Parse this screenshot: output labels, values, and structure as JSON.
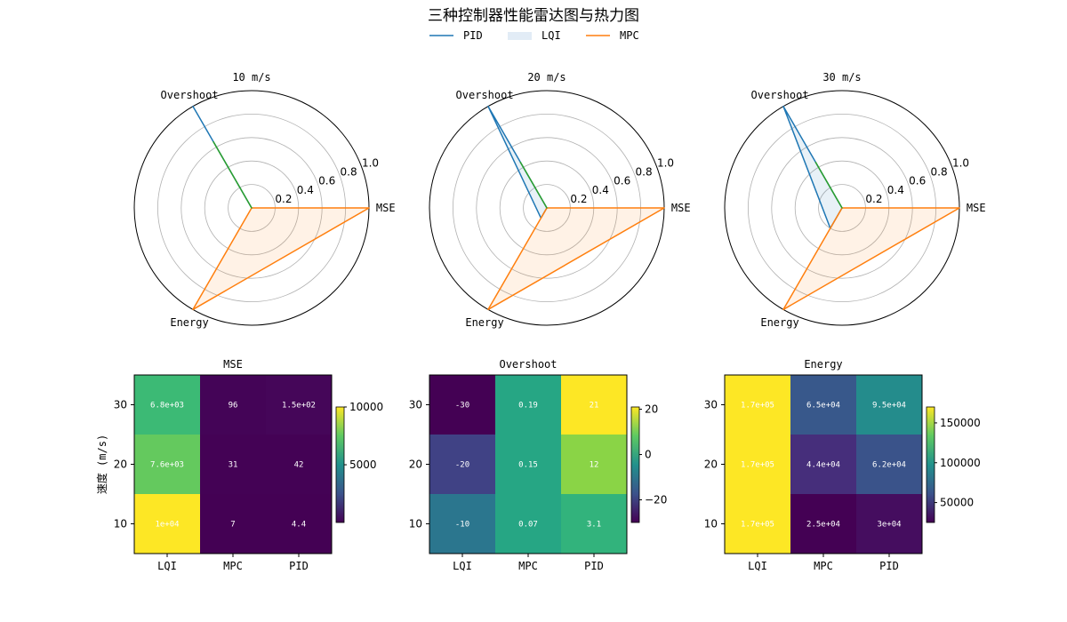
{
  "figure_title": "三种控制器性能雷达图与热力图",
  "legend": [
    {
      "name": "PID",
      "color": "#1f77b4",
      "style": "line"
    },
    {
      "name": "LQI",
      "color": "#cfe0f0",
      "style": "patch"
    },
    {
      "name": "MPC",
      "color": "#ff7f0e",
      "style": "line"
    }
  ],
  "colors": {
    "PID": "#1f77b4",
    "LQI": "#2ca02c",
    "MPC": "#ff7f0e",
    "PID_fill": "#1f77b4",
    "MPC_fill": "#ff7f0e"
  },
  "chart_data": [
    {
      "type": "radar",
      "title": "10 m/s",
      "axes": [
        "MSE",
        "Overshoot",
        "Energy"
      ],
      "rticks": [
        "0.2",
        "0.4",
        "0.6",
        "0.8",
        "1.0"
      ],
      "rlim": [
        0,
        1
      ],
      "series": [
        {
          "name": "PID",
          "values": [
            0.0,
            1.0,
            0.0
          ]
        },
        {
          "name": "LQI",
          "values": [
            0.0,
            0.65,
            0.0
          ]
        },
        {
          "name": "MPC",
          "values": [
            1.0,
            0.0,
            1.0
          ]
        }
      ]
    },
    {
      "type": "radar",
      "title": "20 m/s",
      "axes": [
        "MSE",
        "Overshoot",
        "Energy"
      ],
      "rticks": [
        "0.2",
        "0.4",
        "0.6",
        "0.8",
        "1.0"
      ],
      "rlim": [
        0,
        1
      ],
      "series": [
        {
          "name": "PID",
          "values": [
            0.0,
            1.0,
            0.1
          ]
        },
        {
          "name": "LQI",
          "values": [
            0.0,
            0.45,
            0.0
          ]
        },
        {
          "name": "MPC",
          "values": [
            1.0,
            0.0,
            1.0
          ]
        }
      ]
    },
    {
      "type": "radar",
      "title": "30 m/s",
      "axes": [
        "MSE",
        "Overshoot",
        "Energy"
      ],
      "rticks": [
        "0.2",
        "0.4",
        "0.6",
        "0.8",
        "1.0"
      ],
      "rlim": [
        0,
        1
      ],
      "series": [
        {
          "name": "PID",
          "values": [
            0.0,
            1.0,
            0.2
          ]
        },
        {
          "name": "LQI",
          "values": [
            0.0,
            0.45,
            0.0
          ]
        },
        {
          "name": "MPC",
          "values": [
            1.0,
            0.0,
            1.0
          ]
        }
      ]
    },
    {
      "type": "heatmap",
      "title": "MSE",
      "xlabel": "",
      "ylabel": "速度 (m/s)",
      "x": [
        "LQI",
        "MPC",
        "PID"
      ],
      "y": [
        "10",
        "20",
        "30"
      ],
      "values": [
        [
          10000,
          7,
          4.4
        ],
        [
          7600,
          31,
          42
        ],
        [
          6800,
          96,
          150
        ]
      ],
      "labels": [
        [
          "1e+04",
          "7",
          "4.4"
        ],
        [
          "7.6e+03",
          "31",
          "42"
        ],
        [
          "6.8e+03",
          "96",
          "1.5e+02"
        ]
      ],
      "vmin": 4.4,
      "vmax": 10000,
      "colorbar_ticks": [
        5000,
        10000
      ],
      "colorbar_tick_labels": [
        "5000",
        "10000"
      ]
    },
    {
      "type": "heatmap",
      "title": "Overshoot",
      "xlabel": "",
      "ylabel": "",
      "x": [
        "LQI",
        "MPC",
        "PID"
      ],
      "y": [
        "10",
        "20",
        "30"
      ],
      "values": [
        [
          -10,
          0.07,
          3.1
        ],
        [
          -20,
          0.15,
          12
        ],
        [
          -30,
          0.19,
          21
        ]
      ],
      "labels": [
        [
          "-10",
          "0.07",
          "3.1"
        ],
        [
          "-20",
          "0.15",
          "12"
        ],
        [
          "-30",
          "0.19",
          "21"
        ]
      ],
      "vmin": -30,
      "vmax": 21,
      "colorbar_ticks": [
        -20,
        0,
        20
      ],
      "colorbar_tick_labels": [
        "−20",
        "0",
        "20"
      ]
    },
    {
      "type": "heatmap",
      "title": "Energy",
      "xlabel": "",
      "ylabel": "",
      "x": [
        "LQI",
        "MPC",
        "PID"
      ],
      "y": [
        "10",
        "20",
        "30"
      ],
      "values": [
        [
          170000,
          25000,
          30000
        ],
        [
          170000,
          44000,
          62000
        ],
        [
          170000,
          65000,
          95000
        ]
      ],
      "labels": [
        [
          "1.7e+05",
          "2.5e+04",
          "3e+04"
        ],
        [
          "1.7e+05",
          "4.4e+04",
          "6.2e+04"
        ],
        [
          "1.7e+05",
          "6.5e+04",
          "9.5e+04"
        ]
      ],
      "vmin": 25000,
      "vmax": 170000,
      "colorbar_ticks": [
        50000,
        100000,
        150000
      ],
      "colorbar_tick_labels": [
        "50000",
        "100000",
        "150000"
      ]
    }
  ]
}
